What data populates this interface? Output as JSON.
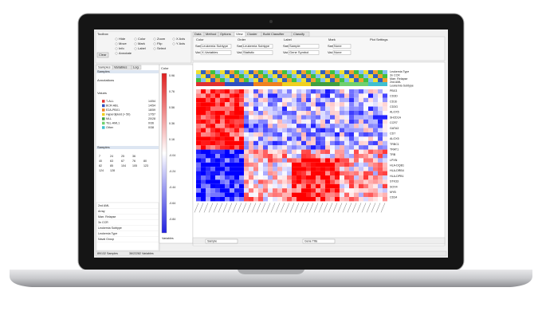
{
  "toolbox": {
    "title": "Toolbox",
    "modes": [
      "Hide",
      "Move",
      "Info",
      "Annotate"
    ],
    "tools": [
      "Color",
      "Mark",
      "Label",
      "Zoom",
      "Flip",
      "Select",
      "X Axis",
      "Y Axis"
    ],
    "clear": "Clear"
  },
  "tabs": [
    "Data",
    "Method",
    "Options",
    "View",
    "Cluster",
    "Build Classifier",
    "Classify"
  ],
  "view_controls": {
    "groups": [
      "Color",
      "Order",
      "Label",
      "Mark",
      "Plot Settings"
    ],
    "row1": [
      "Sam:",
      "Leukemia Subtype",
      "Sam:",
      "Leukemia Subtype",
      "Sam:",
      "Sample",
      "Sam:",
      "None"
    ],
    "row2": [
      "Var:",
      "X-Variables",
      "Var:",
      "Statistic",
      "Var:",
      "Gene Symbol",
      "Var:",
      "None"
    ]
  },
  "left_tabs": [
    "Samples",
    "Variables",
    "Log"
  ],
  "samples_header": "Samples",
  "annotations": "Annotations",
  "values": "Values",
  "legend": [
    {
      "name": "T-ALL",
      "count": "14/54",
      "color": "#e03030"
    },
    {
      "name": "BCR-ABL",
      "count": "14/54",
      "color": "#3050c0"
    },
    {
      "name": "E2A-PBX1",
      "count": "18/59",
      "color": "#f08020"
    },
    {
      "name": "Hyperdiploid (> 50)",
      "count": "17/57",
      "color": "#f0d020"
    },
    {
      "name": "MLL",
      "count": "20/28",
      "color": "#40a040"
    },
    {
      "name": "TEL-AML1",
      "count": "0/36",
      "color": "#70d070"
    },
    {
      "name": "Other",
      "count": "0/38",
      "color": "#40c0d0"
    }
  ],
  "samples_label": "Samples",
  "sample_numbers": [
    7,
    24,
    25,
    36,
    40,
    63,
    67,
    76,
    80,
    82,
    85,
    104,
    105,
    123,
    124,
    128
  ],
  "attributes": [
    "2nd AML",
    "Array",
    "Marr. Relapse",
    "3n CCR",
    "Leukemia Subtype",
    "Leukemia Type",
    "Naval Group"
  ],
  "color_title": "Color",
  "color_ticks": [
    0.96,
    0.76,
    0.56,
    0.36,
    0.16,
    -0.04,
    -0.24,
    -0.44,
    -0.64,
    -0.84
  ],
  "color_footer": "Variables",
  "gene_labels": [
    "Leukemia Type",
    "3n CCR",
    "Marr. Relapse",
    "2nd AML",
    "Leukemia Subtype",
    "PBX3",
    "CD3D",
    "CD1b",
    "CD3G",
    "ALOX5",
    "SH2D1A",
    "CCR7",
    "GATA3",
    "CD7",
    "ALOX5",
    "TRBC1",
    "TRAT1",
    "TRB",
    "LPXN",
    "HLA-DQB1",
    "HLA-DRB4",
    "HLA-DPB1",
    "STK33",
    "SOX4",
    "MYB",
    "CD34"
  ],
  "bottom": {
    "sample": "Sample",
    "gene": "Gene Title"
  },
  "status": {
    "samples": "89/132 Samples",
    "variables": "36/22282 Variables"
  }
}
